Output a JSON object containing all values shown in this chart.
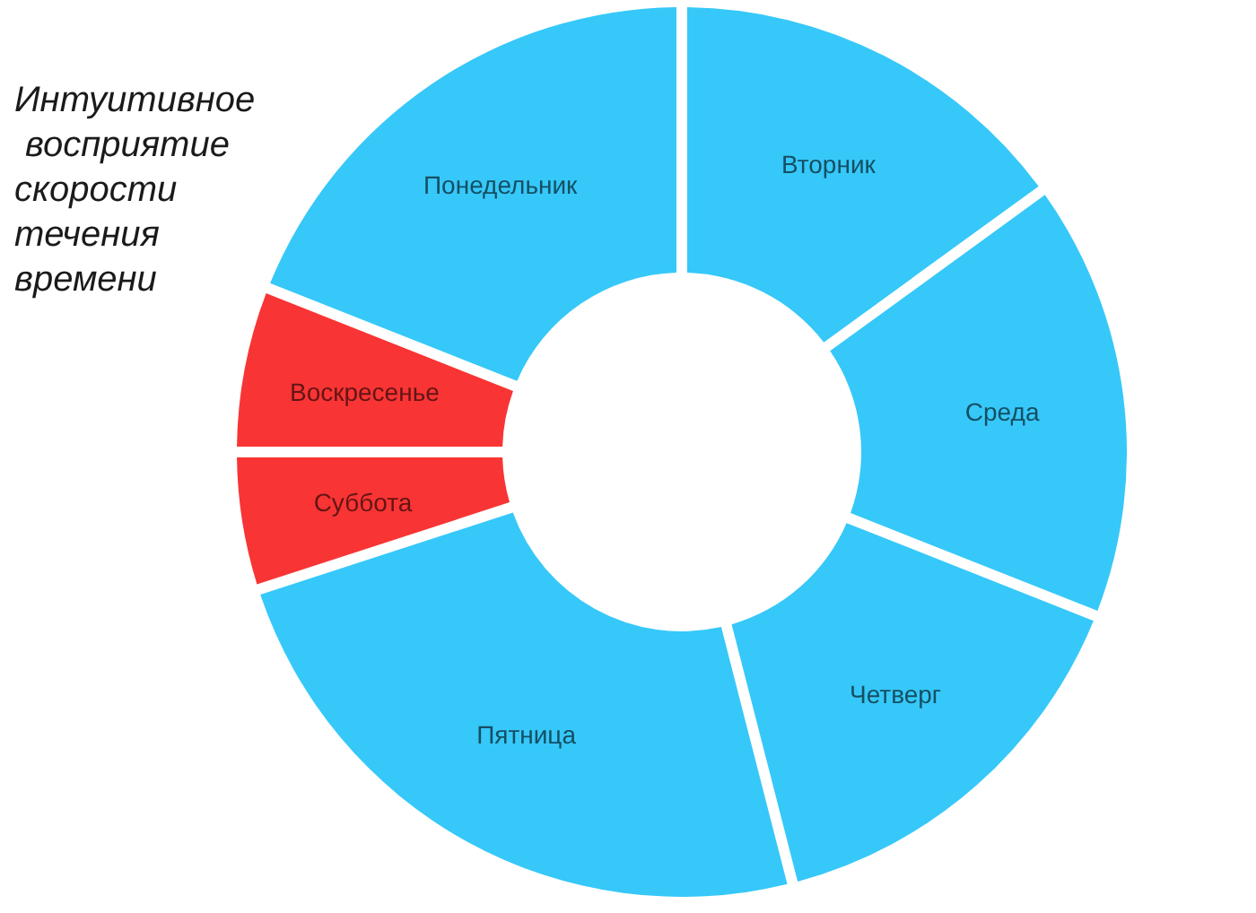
{
  "chart_data": {
    "type": "donut",
    "title": "Интуитивное восприятие скорости течения времени",
    "categories": [
      "Вторник",
      "Среда",
      "Четверг",
      "Пятница",
      "Суббота",
      "Воскресенье",
      "Понедельник"
    ],
    "values": [
      15,
      16,
      15,
      24,
      5,
      6,
      19
    ],
    "colors": [
      "#36c8f9",
      "#36c8f9",
      "#36c8f9",
      "#36c8f9",
      "#f93434",
      "#f93434",
      "#36c8f9"
    ]
  }
}
